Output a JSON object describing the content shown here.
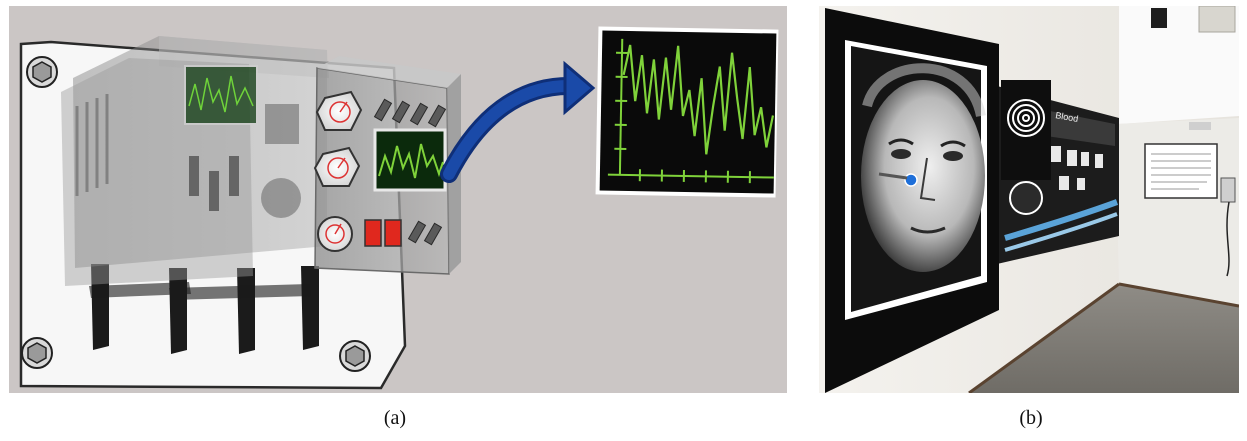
{
  "figure": {
    "panels": [
      {
        "label": "(a)",
        "scene": "translucent-electronic-device-with-oscilloscope-screens",
        "waveform_color": "#7fd23a"
      },
      {
        "label": "(b)",
        "scene": "gallery-hallway-with-portrait-and-timeline-wall",
        "wall_heading": "Blood"
      }
    ],
    "colors": {
      "panel_a_background": "#cbc6c5",
      "arrow": "#123a8f",
      "screen": "#0a0a0a",
      "trace": "#7fd23a",
      "display_red": "#e0281e"
    },
    "icons": [
      "hex-bolt-icon",
      "gauge-icon",
      "curved-arrow-icon"
    ]
  }
}
